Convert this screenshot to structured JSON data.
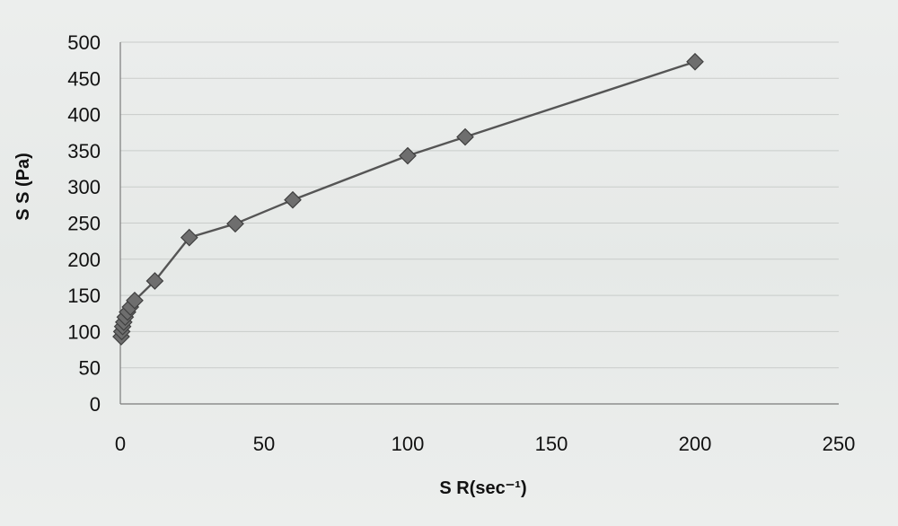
{
  "chart_data": {
    "type": "scatter",
    "title": "",
    "xlabel": "S R(sec⁻¹)",
    "ylabel": "S S (Pa)",
    "xlim": [
      0,
      250
    ],
    "ylim": [
      0,
      500
    ],
    "x_ticks": [
      "0",
      "50",
      "100",
      "150",
      "200",
      "250"
    ],
    "y_ticks": [
      "0",
      "50",
      "100",
      "150",
      "200",
      "250",
      "300",
      "350",
      "400",
      "450",
      "500"
    ],
    "grid": true,
    "legend": "none",
    "colors": {
      "line": "#555555",
      "marker_fill": "#6e6e6e",
      "marker_stroke": "#3f3f3f",
      "grid": "#c9ccca"
    },
    "series": [
      {
        "marker": "diamond",
        "connected": true,
        "points": [
          {
            "x": 0.3,
            "y": 93
          },
          {
            "x": 0.5,
            "y": 100
          },
          {
            "x": 0.8,
            "y": 107
          },
          {
            "x": 1.2,
            "y": 113
          },
          {
            "x": 1.7,
            "y": 120
          },
          {
            "x": 2.5,
            "y": 127
          },
          {
            "x": 3.5,
            "y": 134
          },
          {
            "x": 5,
            "y": 143
          },
          {
            "x": 12,
            "y": 170
          },
          {
            "x": 24,
            "y": 230
          },
          {
            "x": 40,
            "y": 249
          },
          {
            "x": 60,
            "y": 282
          },
          {
            "x": 100,
            "y": 343
          },
          {
            "x": 120,
            "y": 369
          },
          {
            "x": 200,
            "y": 473
          }
        ]
      }
    ]
  }
}
